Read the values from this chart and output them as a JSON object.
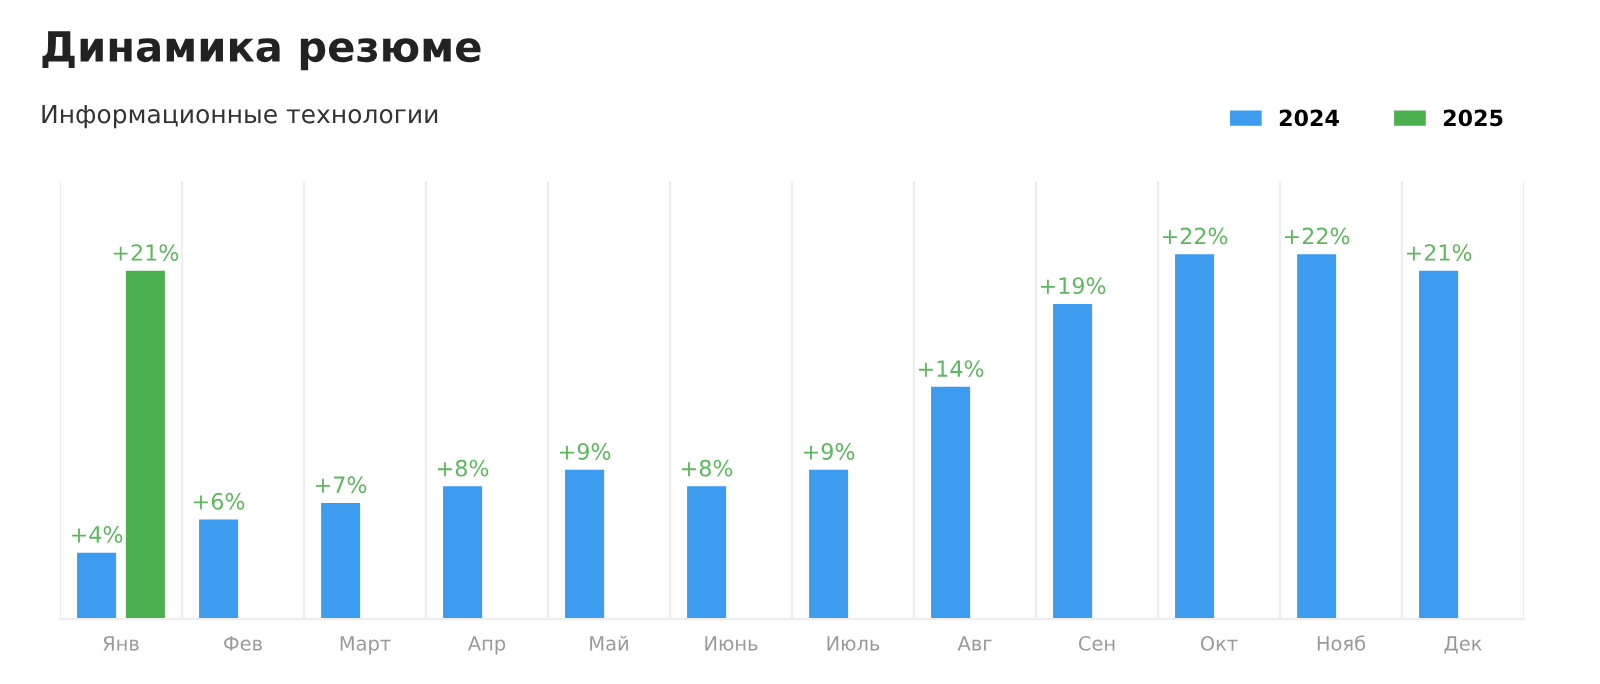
{
  "chart_data": {
    "type": "bar",
    "title": "Динамика резюме",
    "subtitle": "Информационные технологии",
    "categories": [
      "Янв",
      "Фев",
      "Март",
      "Апр",
      "Май",
      "Июнь",
      "Июль",
      "Авг",
      "Сен",
      "Окт",
      "Нояб",
      "Дек"
    ],
    "series": [
      {
        "name": "2024",
        "color": "#3d9cf0",
        "values": [
          4,
          6,
          7,
          8,
          9,
          8,
          9,
          14,
          19,
          22,
          22,
          21
        ],
        "value_labels": [
          "+4%",
          "+6%",
          "+7%",
          "+8%",
          "+9%",
          "+8%",
          "+9%",
          "+14%",
          "+19%",
          "+22%",
          "+22%",
          "+21%"
        ]
      },
      {
        "name": "2025",
        "color": "#4caf50",
        "values": [
          21,
          null,
          null,
          null,
          null,
          null,
          null,
          null,
          null,
          null,
          null,
          null
        ],
        "value_labels": [
          "+21%",
          null,
          null,
          null,
          null,
          null,
          null,
          null,
          null,
          null,
          null,
          null
        ]
      }
    ],
    "grid": "x",
    "legend": "top right"
  }
}
